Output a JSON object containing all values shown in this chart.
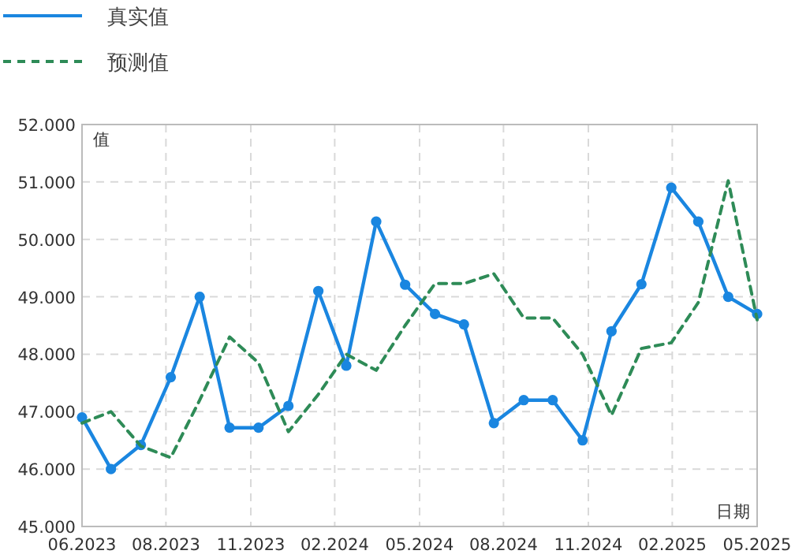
{
  "chart_data": {
    "type": "line",
    "xlabel": "日期",
    "ylabel": "值",
    "x": [
      "2023-06",
      "2023-07",
      "2023-08",
      "2023-09",
      "2023-10",
      "2023-11",
      "2023-12",
      "2024-01",
      "2024-02",
      "2024-03",
      "2024-04",
      "2024-05",
      "2024-06",
      "2024-07",
      "2024-08",
      "2024-09",
      "2024-10",
      "2024-11",
      "2024-12",
      "2025-01",
      "2025-02",
      "2025-03",
      "2025-04",
      "2025-05"
    ],
    "series": [
      {
        "name": "真实值",
        "color": "#1a86e0",
        "marker": "circle",
        "line_style": "solid",
        "values": [
          46900,
          46000,
          46420,
          47600,
          49000,
          46720,
          46720,
          47100,
          49100,
          47800,
          50310,
          49210,
          48700,
          48520,
          46800,
          47200,
          47200,
          46500,
          48400,
          49220,
          50900,
          50310,
          49000,
          48700
        ]
      },
      {
        "name": "预测值",
        "color": "#2e8b57",
        "marker": "none",
        "line_style": "dashed",
        "values": [
          46800,
          47000,
          46400,
          46200,
          47200,
          48300,
          47850,
          46650,
          47300,
          48000,
          47720,
          48500,
          49230,
          49230,
          49400,
          48630,
          48630,
          48000,
          46940,
          48100,
          48200,
          48900,
          51020,
          48600
        ]
      }
    ],
    "xlim": [
      "2023-06",
      "2025-05"
    ],
    "xticks": [
      {
        "value": "2023-06-01",
        "label": "06.2023"
      },
      {
        "value": "2023-08-27",
        "label": "08.2023"
      },
      {
        "value": "2023-11-23",
        "label": "11.2023"
      },
      {
        "value": "2024-02-18",
        "label": "02.2024"
      },
      {
        "value": "2024-05-16",
        "label": "05.2024"
      },
      {
        "value": "2024-08-11",
        "label": "08.2024"
      },
      {
        "value": "2024-11-07",
        "label": "11.2024"
      },
      {
        "value": "2025-02-02",
        "label": "02.2025"
      },
      {
        "value": "2025-05-01",
        "label": "05.2025"
      }
    ],
    "ylim": [
      45000,
      52000
    ],
    "yticks": [
      {
        "value": 45000,
        "label": "45.000"
      },
      {
        "value": 46000,
        "label": "46.000"
      },
      {
        "value": 47000,
        "label": "47.000"
      },
      {
        "value": 48000,
        "label": "48.000"
      },
      {
        "value": 49000,
        "label": "49.000"
      },
      {
        "value": 50000,
        "label": "50.000"
      },
      {
        "value": 51000,
        "label": "51.000"
      },
      {
        "value": 52000,
        "label": "52.000"
      }
    ],
    "grid": true,
    "legend": "top left"
  }
}
